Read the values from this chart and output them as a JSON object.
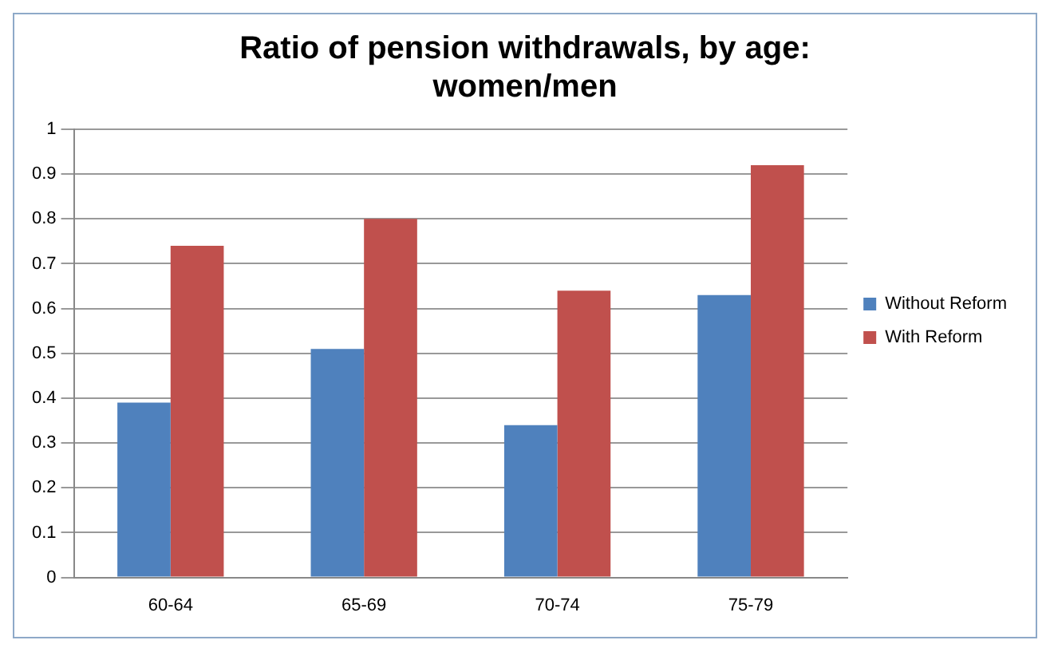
{
  "chart_data": {
    "type": "bar",
    "title": "Ratio of pension withdrawals, by age: women/men",
    "categories": [
      "60-64",
      "65-69",
      "70-74",
      "75-79"
    ],
    "series": [
      {
        "name": "Without Reform",
        "color": "#4f81bd",
        "values": [
          0.39,
          0.51,
          0.34,
          0.63
        ]
      },
      {
        "name": "With Reform",
        "color": "#c0504d",
        "values": [
          0.74,
          0.8,
          0.64,
          0.92
        ]
      }
    ],
    "ylim": [
      0,
      1
    ],
    "yticks": [
      0,
      0.1,
      0.2,
      0.3,
      0.4,
      0.5,
      0.6,
      0.7,
      0.8,
      0.9,
      1
    ],
    "grid": "y",
    "legend": "right"
  }
}
